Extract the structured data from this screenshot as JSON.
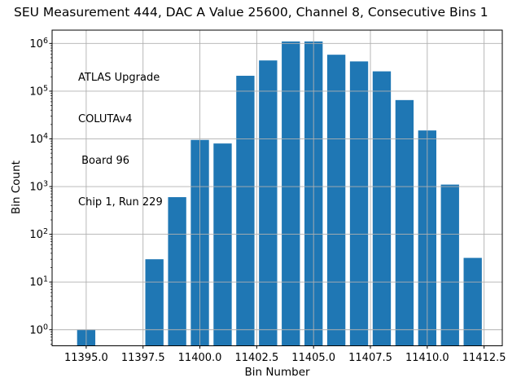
{
  "chart_data": {
    "type": "bar",
    "title": "SEU Measurement 444, DAC A Value 25600, Channel 8, Consecutive Bins 1",
    "xlabel": "Bin Number",
    "ylabel": "Bin Count",
    "annotation_lines": [
      "ATLAS Upgrade",
      "COLUTAv4",
      " Board 96",
      "Chip 1, Run 229"
    ],
    "x": [
      11395,
      11396,
      11397,
      11398,
      11399,
      11400,
      11401,
      11402,
      11403,
      11404,
      11405,
      11406,
      11407,
      11408,
      11409,
      11410,
      11411,
      11412
    ],
    "values": [
      1,
      0,
      0,
      30,
      600,
      9500,
      8000,
      210000,
      440000,
      1100000,
      1100000,
      580000,
      420000,
      260000,
      65000,
      15000,
      1100,
      32
    ],
    "x_tick_values": [
      11395.0,
      11397.5,
      11400.0,
      11402.5,
      11405.0,
      11407.5,
      11410.0,
      11412.5
    ],
    "x_tick_labels": [
      "11395.0",
      "11397.5",
      "11400.0",
      "11402.5",
      "11405.0",
      "11407.5",
      "11410.0",
      "11412.5"
    ],
    "y_scale": "log",
    "y_tick_exponents": [
      0,
      1,
      2,
      3,
      4,
      5,
      6
    ],
    "xlim": [
      11393.5,
      11413.3
    ],
    "ylim": [
      0.46,
      1900000
    ],
    "bar_width": 0.8,
    "bar_color": "#1f77b4",
    "grid": true,
    "grid_color": "#b0b0b0",
    "axis_color": "#000000",
    "grid_on_top_of_bars": true,
    "legend": "none"
  }
}
